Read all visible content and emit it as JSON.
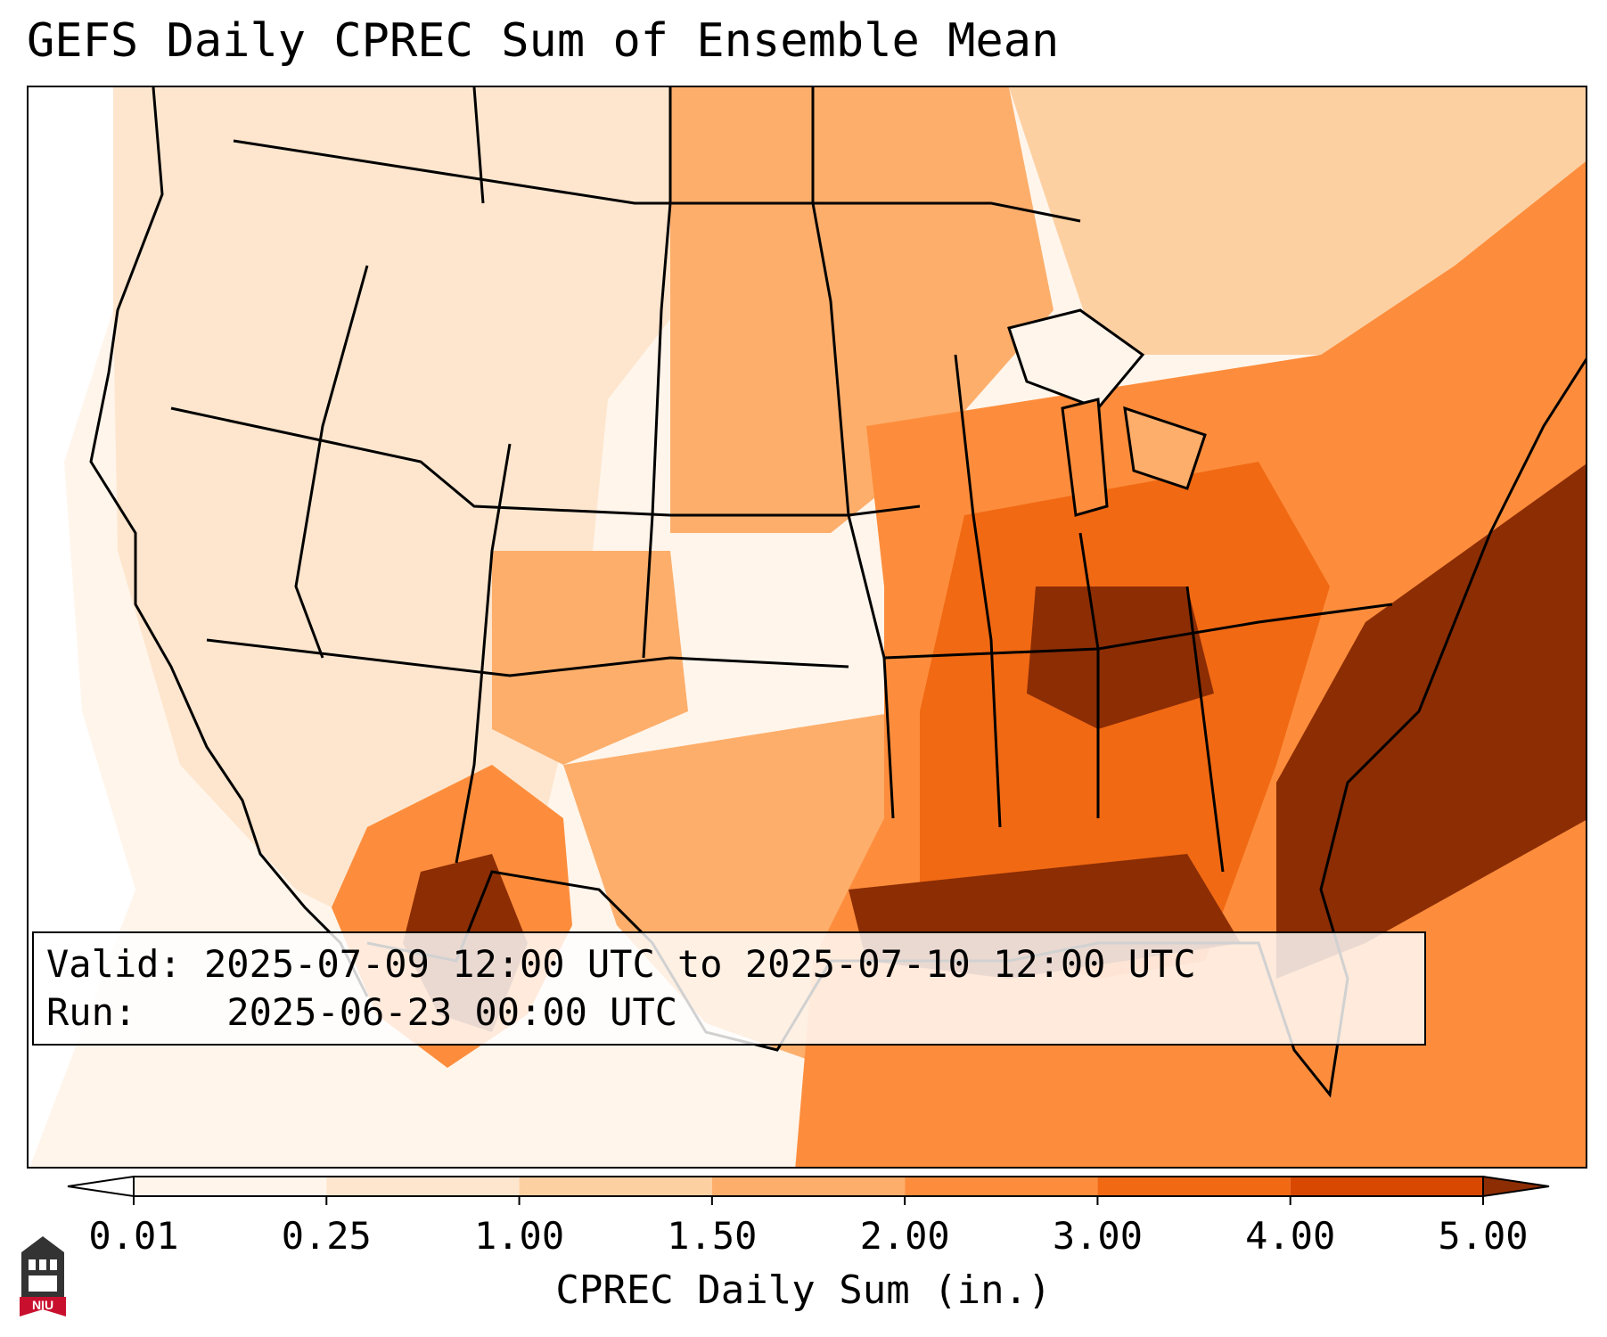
{
  "title": "GEFS Daily CPREC Sum of Ensemble Mean",
  "info": {
    "valid_label": "Valid:",
    "valid_value": "2025-07-09 12:00 UTC to 2025-07-10 12:00 UTC",
    "run_label": "Run:",
    "run_value": "2025-06-23 00:00 UTC"
  },
  "colorbar": {
    "label": "CPREC Daily Sum (in.)",
    "ticks": [
      "0.01",
      "0.25",
      "1.00",
      "1.50",
      "2.00",
      "3.00",
      "4.00",
      "5.00"
    ],
    "colors": [
      "#fff5eb",
      "#fee6ce",
      "#fdd0a2",
      "#fdae6b",
      "#fd8d3c",
      "#f16913",
      "#d94801",
      "#8c2d04"
    ],
    "under_color": "#ffffff",
    "over_color": "#8c2d04"
  },
  "logo": {
    "text": "NIU",
    "colors": {
      "banner": "#c8102e",
      "tower": "#333333"
    }
  },
  "map": {
    "region": "Continental United States",
    "overlay": "state and country borders, coastlines"
  }
}
